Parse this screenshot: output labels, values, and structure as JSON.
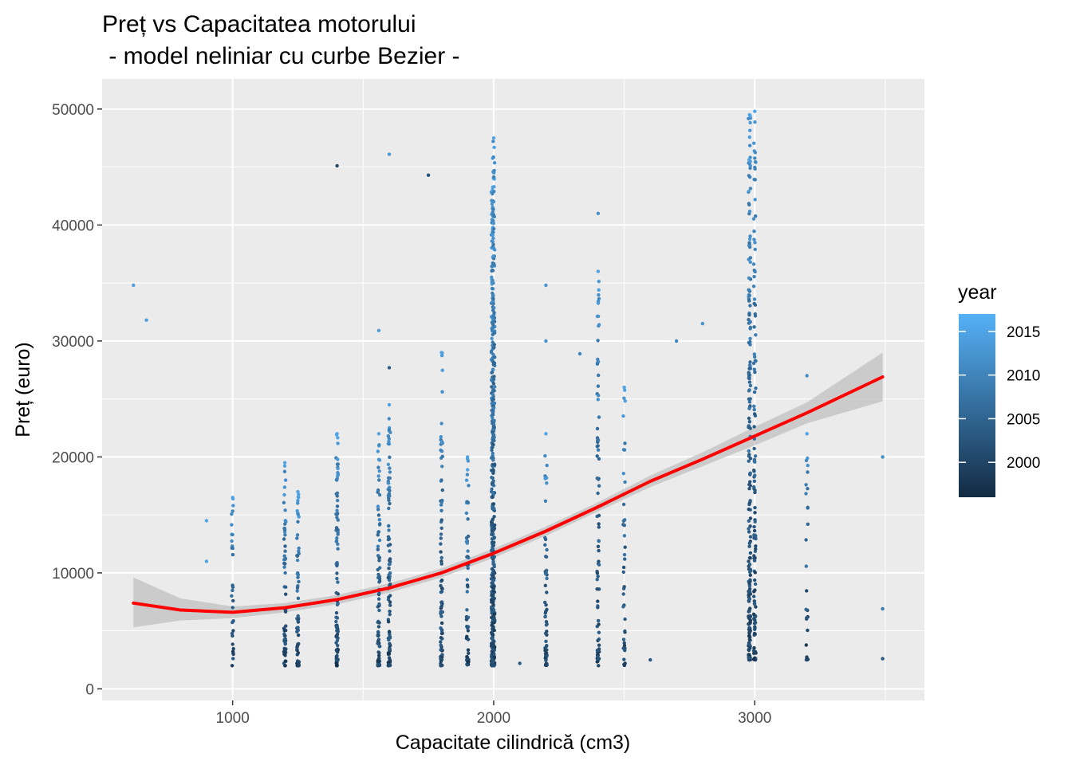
{
  "chart_data": {
    "type": "scatter",
    "title_line1": "Preț vs Capacitatea motorului",
    "title_line2": " - model neliniar cu curbe Bezier -",
    "xlabel": "Capacitate cilindrică (cm3)",
    "ylabel": "Preț (euro)",
    "xlim": [
      500,
      3650
    ],
    "ylim": [
      -1000,
      52600
    ],
    "x_ticks": [
      1000,
      2000,
      3000
    ],
    "y_ticks": [
      0,
      10000,
      20000,
      30000,
      40000,
      50000
    ],
    "grid": true,
    "panel_background": "#ebebeb",
    "point_color_low": "#132b43",
    "point_color_high": "#56b1f7",
    "legend": {
      "title": "year",
      "placement": "right",
      "range": [
        1996,
        2017
      ],
      "ticks": [
        2000,
        2005,
        2010,
        2015
      ]
    },
    "fit_curve": {
      "color": "#ff0000",
      "ribbon_color": "#bebebe",
      "x": [
        620,
        800,
        1000,
        1200,
        1400,
        1600,
        1800,
        2000,
        2200,
        2400,
        2600,
        2800,
        3000,
        3200,
        3490
      ],
      "y": [
        7400,
        6800,
        6600,
        7000,
        7700,
        8700,
        10000,
        11700,
        13600,
        15700,
        17900,
        19800,
        21800,
        23800,
        26900
      ],
      "lower": [
        5300,
        5900,
        6100,
        6600,
        7300,
        8300,
        9600,
        11300,
        13200,
        15300,
        17400,
        19200,
        21000,
        22900,
        24800
      ],
      "upper": [
        9600,
        7800,
        7100,
        7400,
        8100,
        9100,
        10400,
        12100,
        14000,
        16100,
        18400,
        20400,
        22600,
        24700,
        29000
      ]
    },
    "columns": [
      {
        "x": 1000,
        "min": 2000,
        "max": 16500,
        "n": 30
      },
      {
        "x": 1200,
        "min": 2000,
        "max": 19500,
        "n": 60
      },
      {
        "x": 1250,
        "min": 2000,
        "max": 17000,
        "n": 60
      },
      {
        "x": 1400,
        "min": 2000,
        "max": 22000,
        "n": 90
      },
      {
        "x": 1560,
        "min": 2000,
        "max": 22000,
        "n": 80
      },
      {
        "x": 1600,
        "min": 2000,
        "max": 24500,
        "n": 100
      },
      {
        "x": 1800,
        "min": 2000,
        "max": 29000,
        "n": 80
      },
      {
        "x": 1900,
        "min": 2000,
        "max": 20000,
        "n": 60
      },
      {
        "x": 1995,
        "min": 2000,
        "max": 43000,
        "n": 260
      },
      {
        "x": 2000,
        "min": 2000,
        "max": 47500,
        "n": 220
      },
      {
        "x": 2200,
        "min": 2000,
        "max": 22000,
        "n": 60
      },
      {
        "x": 2400,
        "min": 2000,
        "max": 36000,
        "n": 80
      },
      {
        "x": 2500,
        "min": 2000,
        "max": 26000,
        "n": 40
      },
      {
        "x": 2980,
        "min": 2500,
        "max": 49500,
        "n": 200
      },
      {
        "x": 3000,
        "min": 2500,
        "max": 49800,
        "n": 120
      },
      {
        "x": 3200,
        "min": 2500,
        "max": 22000,
        "n": 25
      }
    ],
    "outliers": [
      {
        "x": 620,
        "y": 34800,
        "year": 2014
      },
      {
        "x": 670,
        "y": 31800,
        "year": 2014
      },
      {
        "x": 900,
        "y": 14500,
        "year": 2015
      },
      {
        "x": 900,
        "y": 11000,
        "year": 2015
      },
      {
        "x": 1400,
        "y": 45100,
        "year": 2001
      },
      {
        "x": 1600,
        "y": 46100,
        "year": 2013
      },
      {
        "x": 1750,
        "y": 44300,
        "year": 2002
      },
      {
        "x": 1560,
        "y": 30900,
        "year": 2014
      },
      {
        "x": 1600,
        "y": 27700,
        "year": 2004
      },
      {
        "x": 2200,
        "y": 34800,
        "year": 2012
      },
      {
        "x": 2400,
        "y": 41000,
        "year": 2012
      },
      {
        "x": 2200,
        "y": 30000,
        "year": 2012
      },
      {
        "x": 2800,
        "y": 31500,
        "year": 2012
      },
      {
        "x": 3200,
        "y": 27000,
        "year": 2011
      },
      {
        "x": 3490,
        "y": 20000,
        "year": 2011
      },
      {
        "x": 3490,
        "y": 6900,
        "year": 2008
      },
      {
        "x": 3490,
        "y": 2600,
        "year": 2003
      },
      {
        "x": 2100,
        "y": 2200,
        "year": 2003
      },
      {
        "x": 2600,
        "y": 2500,
        "year": 2003
      },
      {
        "x": 2700,
        "y": 30000,
        "year": 2010
      },
      {
        "x": 2330,
        "y": 28900,
        "year": 2010
      }
    ]
  }
}
